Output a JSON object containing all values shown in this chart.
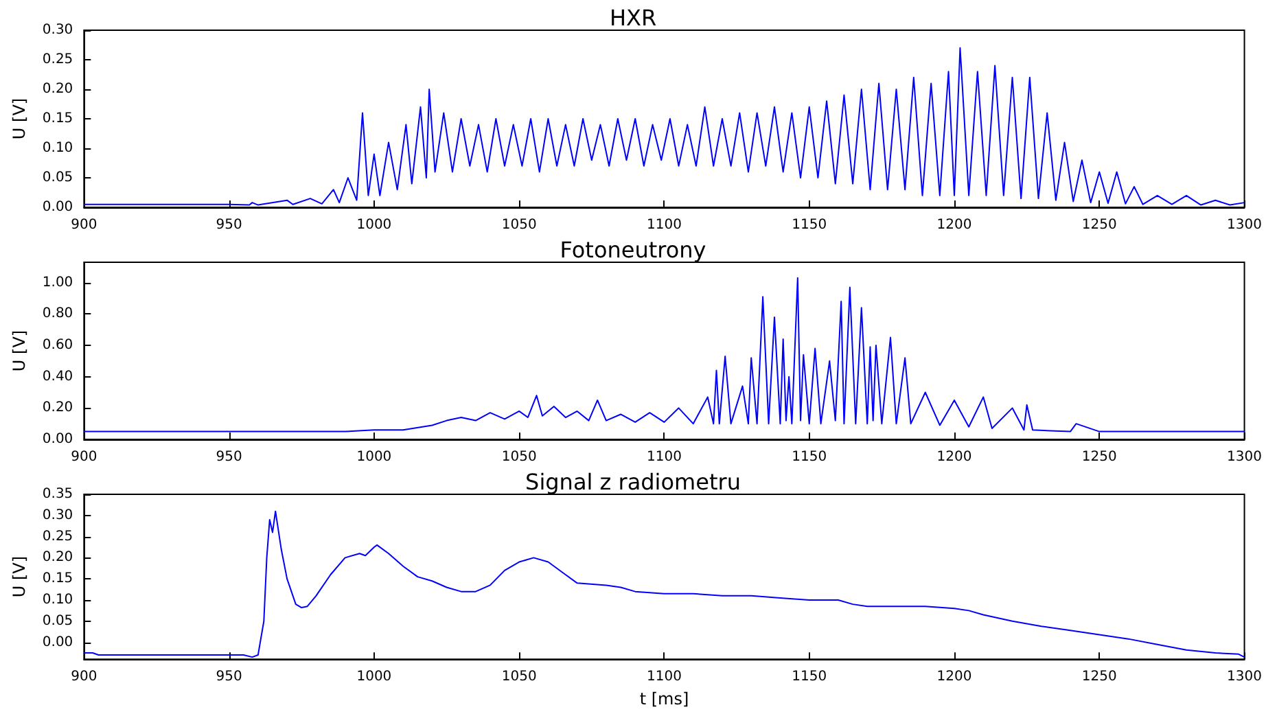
{
  "chart_data": [
    {
      "type": "line",
      "title": "HXR",
      "ylabel": "U [V]",
      "xlim": [
        900,
        1300
      ],
      "xticks": [
        900,
        950,
        1000,
        1050,
        1100,
        1150,
        1200,
        1250,
        1300
      ],
      "ylim": [
        0,
        0.3
      ],
      "yticks": [
        {
          "value": 0,
          "label": "0.00"
        },
        {
          "value": 0.05,
          "label": "0.05"
        },
        {
          "value": 0.1,
          "label": "0.10"
        },
        {
          "value": 0.15,
          "label": "0.15"
        },
        {
          "value": 0.2,
          "label": "0.20"
        },
        {
          "value": 0.25,
          "label": "0.25"
        },
        {
          "value": 0.3,
          "label": "0.30"
        }
      ],
      "x": [
        900,
        950,
        957,
        958,
        960,
        970,
        972,
        978,
        982,
        986,
        988,
        991,
        994,
        996,
        998,
        1000,
        1002,
        1005,
        1008,
        1011,
        1013,
        1016,
        1018,
        1019,
        1021,
        1024,
        1027,
        1030,
        1033,
        1036,
        1039,
        1042,
        1045,
        1048,
        1051,
        1054,
        1057,
        1060,
        1063,
        1066,
        1069,
        1072,
        1075,
        1078,
        1081,
        1084,
        1087,
        1090,
        1093,
        1096,
        1099,
        1102,
        1105,
        1108,
        1111,
        1114,
        1117,
        1120,
        1123,
        1126,
        1129,
        1132,
        1135,
        1138,
        1141,
        1144,
        1147,
        1150,
        1153,
        1156,
        1159,
        1162,
        1165,
        1168,
        1171,
        1174,
        1177,
        1180,
        1183,
        1186,
        1189,
        1192,
        1195,
        1198,
        1200,
        1202,
        1205,
        1208,
        1211,
        1214,
        1217,
        1220,
        1223,
        1226,
        1229,
        1232,
        1235,
        1238,
        1241,
        1244,
        1247,
        1250,
        1253,
        1256,
        1259,
        1262,
        1265,
        1270,
        1275,
        1280,
        1285,
        1290,
        1295,
        1300
      ],
      "series": [
        {
          "color": "#0000ff",
          "values": [
            0.005,
            0.005,
            0.004,
            0.008,
            0.004,
            0.012,
            0.005,
            0.015,
            0.006,
            0.03,
            0.008,
            0.05,
            0.012,
            0.16,
            0.02,
            0.09,
            0.02,
            0.11,
            0.03,
            0.14,
            0.04,
            0.17,
            0.05,
            0.2,
            0.06,
            0.16,
            0.06,
            0.15,
            0.07,
            0.14,
            0.06,
            0.15,
            0.07,
            0.14,
            0.07,
            0.15,
            0.06,
            0.15,
            0.07,
            0.14,
            0.07,
            0.15,
            0.08,
            0.14,
            0.07,
            0.15,
            0.08,
            0.15,
            0.07,
            0.14,
            0.08,
            0.15,
            0.07,
            0.14,
            0.07,
            0.17,
            0.07,
            0.15,
            0.07,
            0.16,
            0.06,
            0.16,
            0.07,
            0.17,
            0.06,
            0.16,
            0.05,
            0.17,
            0.05,
            0.18,
            0.04,
            0.19,
            0.04,
            0.2,
            0.03,
            0.21,
            0.03,
            0.2,
            0.03,
            0.22,
            0.02,
            0.21,
            0.02,
            0.23,
            0.02,
            0.27,
            0.02,
            0.23,
            0.02,
            0.24,
            0.02,
            0.22,
            0.015,
            0.22,
            0.015,
            0.16,
            0.012,
            0.11,
            0.01,
            0.08,
            0.008,
            0.06,
            0.007,
            0.06,
            0.006,
            0.035,
            0.005,
            0.02,
            0.005,
            0.02,
            0.004,
            0.012,
            0.004,
            0.008
          ]
        }
      ]
    },
    {
      "type": "line",
      "title": "Fotoneutrony",
      "ylabel": "U [V]",
      "xlim": [
        900,
        1300
      ],
      "xticks": [
        900,
        950,
        1000,
        1050,
        1100,
        1150,
        1200,
        1250,
        1300
      ],
      "ylim": [
        0,
        1.13
      ],
      "yticks": [
        {
          "value": 0,
          "label": "0.00"
        },
        {
          "value": 0.2,
          "label": "0.20"
        },
        {
          "value": 0.4,
          "label": "0.40"
        },
        {
          "value": 0.6,
          "label": "0.60"
        },
        {
          "value": 0.8,
          "label": "0.80"
        },
        {
          "value": 1,
          "label": "1.00"
        }
      ],
      "x": [
        900,
        990,
        1000,
        1010,
        1020,
        1025,
        1030,
        1035,
        1040,
        1045,
        1050,
        1053,
        1056,
        1058,
        1062,
        1066,
        1070,
        1074,
        1077,
        1080,
        1085,
        1090,
        1095,
        1100,
        1105,
        1110,
        1115,
        1117,
        1118,
        1119,
        1121,
        1123,
        1127,
        1129,
        1130,
        1132,
        1134,
        1136,
        1138,
        1140,
        1141,
        1142,
        1143,
        1144,
        1146,
        1147,
        1148,
        1150,
        1152,
        1154,
        1157,
        1159,
        1161,
        1162,
        1164,
        1166,
        1168,
        1170,
        1171,
        1172,
        1173,
        1175,
        1178,
        1180,
        1183,
        1185,
        1190,
        1195,
        1200,
        1205,
        1210,
        1213,
        1220,
        1224,
        1225,
        1227,
        1240,
        1242,
        1250,
        1300
      ],
      "series": [
        {
          "color": "#0000ff",
          "values": [
            0.05,
            0.05,
            0.06,
            0.06,
            0.09,
            0.12,
            0.14,
            0.12,
            0.17,
            0.13,
            0.18,
            0.14,
            0.28,
            0.15,
            0.21,
            0.14,
            0.18,
            0.12,
            0.25,
            0.12,
            0.16,
            0.11,
            0.17,
            0.11,
            0.2,
            0.1,
            0.27,
            0.1,
            0.44,
            0.1,
            0.53,
            0.1,
            0.34,
            0.1,
            0.52,
            0.1,
            0.91,
            0.1,
            0.78,
            0.1,
            0.64,
            0.12,
            0.4,
            0.1,
            1.03,
            0.12,
            0.54,
            0.1,
            0.58,
            0.1,
            0.5,
            0.12,
            0.88,
            0.1,
            0.97,
            0.1,
            0.84,
            0.1,
            0.59,
            0.12,
            0.6,
            0.1,
            0.65,
            0.1,
            0.52,
            0.1,
            0.3,
            0.09,
            0.25,
            0.08,
            0.27,
            0.07,
            0.2,
            0.06,
            0.22,
            0.06,
            0.05,
            0.1,
            0.05,
            0.05
          ]
        }
      ]
    },
    {
      "type": "line",
      "title": "Signal z radiometru",
      "xlabel": "t [ms]",
      "ylabel": "U [V]",
      "xlim": [
        900,
        1300
      ],
      "xticks": [
        900,
        950,
        1000,
        1050,
        1100,
        1150,
        1200,
        1250,
        1300
      ],
      "ylim": [
        -0.04,
        0.35
      ],
      "yticks": [
        {
          "value": 0,
          "label": "0.00"
        },
        {
          "value": 0.05,
          "label": "0.05"
        },
        {
          "value": 0.1,
          "label": "0.10"
        },
        {
          "value": 0.15,
          "label": "0.15"
        },
        {
          "value": 0.2,
          "label": "0.20"
        },
        {
          "value": 0.25,
          "label": "0.25"
        },
        {
          "value": 0.3,
          "label": "0.30"
        },
        {
          "value": 0.35,
          "label": "0.35"
        }
      ],
      "x": [
        900,
        903,
        905,
        955,
        958,
        960,
        962,
        963,
        964,
        965,
        966,
        968,
        970,
        973,
        975,
        977,
        980,
        985,
        990,
        995,
        997,
        1000,
        1001,
        1005,
        1010,
        1015,
        1020,
        1025,
        1030,
        1035,
        1040,
        1045,
        1050,
        1055,
        1060,
        1065,
        1070,
        1080,
        1085,
        1090,
        1100,
        1110,
        1120,
        1130,
        1140,
        1150,
        1160,
        1165,
        1170,
        1180,
        1190,
        1200,
        1205,
        1210,
        1220,
        1230,
        1240,
        1250,
        1260,
        1270,
        1280,
        1290,
        1298,
        1300
      ],
      "series": [
        {
          "color": "#0000ff",
          "values": [
            -0.025,
            -0.025,
            -0.03,
            -0.03,
            -0.035,
            -0.03,
            0.05,
            0.2,
            0.29,
            0.26,
            0.31,
            0.22,
            0.15,
            0.09,
            0.082,
            0.085,
            0.11,
            0.16,
            0.2,
            0.21,
            0.205,
            0.225,
            0.23,
            0.21,
            0.18,
            0.155,
            0.145,
            0.13,
            0.12,
            0.12,
            0.135,
            0.17,
            0.19,
            0.2,
            0.19,
            0.165,
            0.14,
            0.135,
            0.13,
            0.12,
            0.115,
            0.115,
            0.11,
            0.11,
            0.105,
            0.1,
            0.1,
            0.09,
            0.085,
            0.085,
            0.085,
            0.08,
            0.075,
            0.065,
            0.05,
            0.038,
            0.028,
            0.018,
            0.008,
            -0.005,
            -0.018,
            -0.025,
            -0.028,
            -0.035
          ]
        }
      ]
    }
  ]
}
